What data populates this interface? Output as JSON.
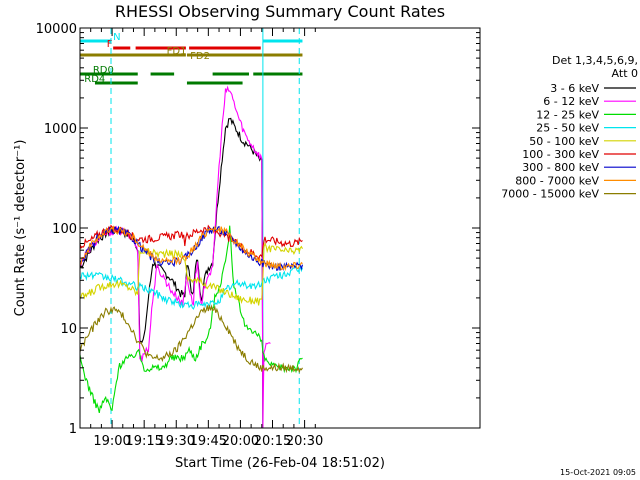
{
  "chart_data": {
    "type": "line",
    "title": "RHESSI Observing Summary Count Rates",
    "xlabel": "Start Time (26-Feb-04 18:51:02)",
    "ylabel": "Count Rate (s⁻¹ detector⁻¹)",
    "ylog": true,
    "ylim": [
      1,
      10000
    ],
    "xlim_min": [
      -6,
      181
    ],
    "x_ticks": [
      {
        "t": 9,
        "label": "19:00"
      },
      {
        "t": 24,
        "label": "19:15"
      },
      {
        "t": 39,
        "label": "19:30"
      },
      {
        "t": 54,
        "label": "19:45"
      },
      {
        "t": 69,
        "label": "20:00"
      },
      {
        "t": 84,
        "label": "20:15"
      },
      {
        "t": 99,
        "label": "20:30"
      }
    ],
    "y_ticks": [
      {
        "v": 1,
        "label": "1"
      },
      {
        "v": 10,
        "label": "10"
      },
      {
        "v": 100,
        "label": "100"
      },
      {
        "v": 1000,
        "label": "1000"
      },
      {
        "v": 10000,
        "label": "10000"
      }
    ],
    "legend_header": [
      "Det 1,3,4,5,6,9,",
      "Att 0"
    ],
    "footer_date": "15-Oct-2021 09:05",
    "vlines": [
      {
        "t": -6,
        "color": "#00e5ee",
        "style": "solid"
      },
      {
        "t": 8.5,
        "color": "#00e5ee",
        "style": "dashed"
      },
      {
        "t": 79.5,
        "color": "#00e5ee",
        "style": "solid"
      },
      {
        "t": 96.5,
        "color": "#00e5ee",
        "style": "dashed"
      }
    ],
    "flags": [
      {
        "label": "N",
        "color": "#00e5ee",
        "y_row": 0,
        "segments": [
          [
            -6,
            8.5
          ],
          [
            79.5,
            98
          ]
        ],
        "label_at": 9.5
      },
      {
        "label": "F",
        "color": "#e00000",
        "y_row": 1,
        "segments": [
          [
            9.5,
            17.5
          ],
          [
            20,
            43.5
          ],
          [
            45,
            78.5
          ]
        ],
        "label_at": 6.5
      },
      {
        "label": "FD1",
        "color": "#8b7d00",
        "y_row": 2,
        "segments": [
          [
            -6,
            43.5
          ],
          [
            44,
            98
          ]
        ],
        "label_at": 34.5
      },
      {
        "label": "FD2",
        "color": "#8b7d00",
        "y_row": 3,
        "segments": [],
        "label_at": 45.5
      },
      {
        "label": "RD0",
        "color": "#007a00",
        "y_row": 4,
        "segments": [
          [
            -6,
            21
          ],
          [
            27,
            38
          ],
          [
            56,
            73
          ],
          [
            75,
            98
          ]
        ],
        "label_at": 0
      },
      {
        "label": "RD4",
        "color": "#007a00",
        "y_row": 5,
        "segments": [
          [
            1,
            21
          ],
          [
            44,
            70
          ]
        ],
        "label_at": -4
      }
    ],
    "series": [
      {
        "name": "3 - 6 keV",
        "color": "#000000",
        "x": [
          -6,
          -2,
          2,
          6,
          10,
          14,
          18,
          20,
          21,
          22,
          23,
          24,
          26,
          28,
          30,
          32,
          34,
          36,
          38,
          40,
          41,
          42,
          43,
          44,
          45,
          46,
          47,
          48,
          49,
          50,
          51,
          52,
          53,
          54,
          56,
          58,
          60,
          62,
          64,
          66,
          68,
          70,
          72,
          74,
          76,
          78,
          79,
          79.5
        ],
        "y": [
          40,
          55,
          75,
          88,
          94,
          92,
          80,
          70,
          60,
          8,
          7,
          8,
          20,
          45,
          42,
          38,
          35,
          32,
          28,
          24,
          22,
          22,
          20,
          45,
          35,
          25,
          22,
          40,
          50,
          25,
          20,
          30,
          35,
          40,
          45,
          150,
          400,
          1000,
          1250,
          1050,
          900,
          750,
          700,
          620,
          550,
          480,
          450,
          1
        ]
      },
      {
        "name": "6 - 12 keV",
        "color": "#ff00ff",
        "x": [
          -6,
          -2,
          2,
          6,
          10,
          14,
          18,
          20,
          21,
          22,
          23,
          24,
          26,
          28,
          30,
          32,
          34,
          36,
          38,
          40,
          42,
          44,
          45,
          46,
          47,
          48,
          49,
          50,
          51,
          52,
          53,
          54,
          56,
          58,
          60,
          62,
          64,
          66,
          68,
          70,
          72,
          74,
          76,
          78,
          79,
          79.5,
          80,
          81,
          82,
          83
        ],
        "y": [
          45,
          60,
          75,
          88,
          94,
          92,
          80,
          70,
          55,
          5,
          5,
          6,
          6,
          20,
          40,
          35,
          30,
          25,
          22,
          20,
          17,
          35,
          25,
          20,
          18,
          35,
          45,
          20,
          16,
          25,
          30,
          35,
          38,
          200,
          800,
          2300,
          2400,
          1800,
          1300,
          1000,
          800,
          700,
          600,
          530,
          500,
          1,
          6,
          7,
          6.5,
          7
        ]
      },
      {
        "name": "12 - 25 keV",
        "color": "#00dd00",
        "x": [
          -6,
          -3,
          0,
          3,
          6,
          9,
          12,
          15,
          18,
          21,
          24,
          27,
          30,
          33,
          36,
          39,
          42,
          45,
          48,
          51,
          54,
          57,
          60,
          63,
          64,
          65,
          66,
          68,
          70,
          72,
          74,
          76,
          78,
          79,
          80,
          85,
          90,
          95,
          98
        ],
        "y": [
          5,
          3,
          2,
          1.5,
          2,
          1.5,
          4,
          5,
          5,
          6,
          4,
          4,
          4,
          4,
          5,
          5,
          5,
          6,
          5,
          7,
          8,
          20,
          30,
          60,
          110,
          50,
          25,
          18,
          12,
          10,
          10,
          9,
          8,
          7,
          5,
          4,
          4,
          4,
          5
        ]
      },
      {
        "name": "25 - 50 keV",
        "color": "#00e5ee",
        "x": [
          -6,
          -2,
          2,
          6,
          10,
          14,
          18,
          21,
          24,
          27,
          30,
          33,
          36,
          39,
          42,
          45,
          48,
          51,
          54,
          57,
          60,
          63,
          66,
          69,
          72,
          75,
          78,
          80,
          84,
          88,
          92,
          96,
          98
        ],
        "y": [
          34,
          34,
          33,
          32,
          31,
          29,
          27,
          26,
          25,
          24,
          22,
          20,
          19,
          18,
          17,
          17,
          17,
          17,
          17,
          18,
          20,
          25,
          27,
          28,
          27,
          26,
          27,
          30,
          32,
          34,
          36,
          38,
          40
        ]
      },
      {
        "name": "50 - 100 keV",
        "color": "#d4d400",
        "x": [
          -6,
          -2,
          2,
          6,
          10,
          14,
          18,
          20,
          21,
          22,
          26,
          30,
          34,
          38,
          42,
          43,
          44,
          48,
          52,
          56,
          60,
          64,
          68,
          72,
          76,
          79,
          80,
          84,
          88,
          92,
          96,
          98
        ],
        "y": [
          20,
          22,
          25,
          27,
          28,
          27,
          25,
          23,
          22,
          60,
          58,
          56,
          55,
          55,
          55,
          48,
          32,
          30,
          28,
          26,
          24,
          22,
          20,
          19,
          19,
          18,
          65,
          62,
          60,
          58,
          60,
          62
        ]
      },
      {
        "name": "100 - 300 keV",
        "color": "#e00000",
        "x": [
          -6,
          -2,
          2,
          6,
          10,
          14,
          18,
          20,
          21,
          22,
          26,
          30,
          34,
          38,
          42,
          43,
          44,
          48,
          52,
          56,
          60,
          64,
          68,
          72,
          76,
          79,
          80,
          84,
          88,
          92,
          96,
          98
        ],
        "y": [
          68,
          72,
          85,
          95,
          98,
          95,
          85,
          80,
          78,
          78,
          78,
          80,
          82,
          84,
          88,
          70,
          82,
          92,
          98,
          95,
          88,
          78,
          68,
          60,
          55,
          52,
          78,
          75,
          72,
          70,
          72,
          75
        ]
      },
      {
        "name": "300 - 800 keV",
        "color": "#0000cc",
        "x": [
          -6,
          -2,
          2,
          6,
          10,
          14,
          18,
          21,
          24,
          27,
          30,
          33,
          36,
          39,
          42,
          45,
          48,
          51,
          54,
          57,
          60,
          63,
          66,
          69,
          72,
          75,
          78,
          80,
          84,
          88,
          92,
          96,
          98
        ],
        "y": [
          44,
          60,
          78,
          90,
          96,
          92,
          82,
          70,
          60,
          52,
          47,
          45,
          45,
          46,
          48,
          55,
          65,
          80,
          95,
          98,
          94,
          86,
          75,
          64,
          56,
          50,
          46,
          44,
          42,
          41,
          41,
          42,
          43
        ]
      },
      {
        "name": "800 - 7000 keV",
        "color": "#ff8c00",
        "x": [
          -6,
          -2,
          2,
          6,
          10,
          14,
          18,
          21,
          24,
          27,
          30,
          33,
          36,
          39,
          42,
          45,
          48,
          51,
          54,
          57,
          60,
          63,
          66,
          69,
          72,
          75,
          78,
          80,
          84,
          88,
          92,
          96,
          98
        ],
        "y": [
          46,
          62,
          80,
          92,
          97,
          93,
          84,
          72,
          62,
          54,
          49,
          46,
          46,
          47,
          49,
          56,
          66,
          82,
          97,
          100,
          96,
          88,
          77,
          66,
          58,
          52,
          48,
          45,
          43,
          42,
          42,
          43,
          44
        ]
      },
      {
        "name": "7000 - 15000 keV",
        "color": "#8b7d00",
        "x": [
          -6,
          -3,
          0,
          3,
          6,
          9,
          12,
          15,
          18,
          21,
          24,
          27,
          30,
          33,
          36,
          39,
          42,
          45,
          48,
          51,
          54,
          57,
          60,
          63,
          66,
          69,
          72,
          75,
          78,
          80,
          84,
          88,
          92,
          96,
          98
        ],
        "y": [
          6,
          8,
          10,
          12.5,
          14.5,
          15.5,
          14.5,
          12.5,
          10,
          7.5,
          6,
          5,
          5,
          5,
          5.5,
          6,
          7.5,
          9.5,
          12,
          14.5,
          16,
          15,
          12.5,
          10,
          7.5,
          6,
          5,
          4.5,
          4,
          4,
          4,
          4,
          4,
          4,
          4
        ]
      }
    ]
  }
}
